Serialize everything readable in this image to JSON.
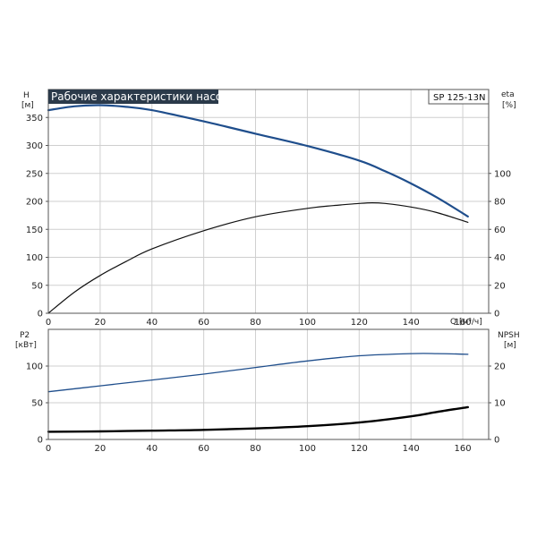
{
  "title": "Рабочие характеристики насоса",
  "model": "SP 125-13N",
  "colors": {
    "head": "#1f4e8c",
    "eff": "#111111",
    "p2": "#1f4e8c",
    "npsh": "#000000",
    "title_bg": "#2b3a4a"
  },
  "chart_data": [
    {
      "type": "line",
      "name": "upper",
      "xlabel": "Q [м³/ч]",
      "left_axis": {
        "label": "H",
        "unit": "[м]",
        "ylim": [
          0,
          400
        ],
        "ticks": [
          0,
          50,
          100,
          150,
          200,
          250,
          300,
          350
        ]
      },
      "right_axis": {
        "label": "eta",
        "unit": "[%]",
        "ylim": [
          0,
          160
        ],
        "ticks": [
          0,
          20,
          40,
          60,
          80,
          100
        ]
      },
      "xlim": [
        0,
        170
      ],
      "xticks": [
        0,
        20,
        40,
        60,
        80,
        100,
        120,
        140,
        160
      ],
      "grid": true,
      "series": [
        {
          "axis": "left",
          "color": "#1f4e8c",
          "width": 2.2,
          "x": [
            0,
            10,
            20,
            30,
            40,
            60,
            80,
            100,
            120,
            130,
            140,
            150,
            162
          ],
          "y": [
            363,
            370,
            372,
            369,
            363,
            343,
            321,
            299,
            273,
            254,
            232,
            207,
            173
          ]
        },
        {
          "axis": "right",
          "color": "#111111",
          "width": 1.2,
          "x": [
            0,
            10,
            20,
            30,
            40,
            60,
            80,
            100,
            110,
            120,
            125,
            130,
            140,
            150,
            162
          ],
          "y": [
            0,
            15,
            27,
            37,
            46,
            59,
            69,
            75,
            77,
            78.5,
            79,
            78.5,
            76,
            72,
            65
          ]
        }
      ]
    },
    {
      "type": "line",
      "name": "lower",
      "left_axis": {
        "label": "P2",
        "unit": "[кВт]",
        "ylim": [
          0,
          150
        ],
        "ticks": [
          0,
          50,
          100
        ]
      },
      "right_axis": {
        "label": "NPSH",
        "unit": "[м]",
        "ylim": [
          0,
          30
        ],
        "ticks": [
          0,
          10,
          20
        ]
      },
      "xlim": [
        0,
        170
      ],
      "xticks": [
        0,
        20,
        40,
        60,
        80,
        100,
        120,
        140,
        160
      ],
      "grid": true,
      "series": [
        {
          "axis": "left",
          "color": "#1f4e8c",
          "width": 1.3,
          "x": [
            0,
            20,
            40,
            60,
            80,
            100,
            120,
            140,
            150,
            162
          ],
          "y": [
            65,
            73,
            81,
            89,
            98,
            107,
            114,
            117,
            117,
            116
          ]
        },
        {
          "axis": "right",
          "color": "#000000",
          "width": 2.4,
          "x": [
            0,
            20,
            40,
            60,
            80,
            100,
            120,
            140,
            150,
            162
          ],
          "y": [
            2.1,
            2.2,
            2.4,
            2.6,
            3.0,
            3.6,
            4.6,
            6.3,
            7.5,
            8.8
          ]
        }
      ]
    }
  ]
}
